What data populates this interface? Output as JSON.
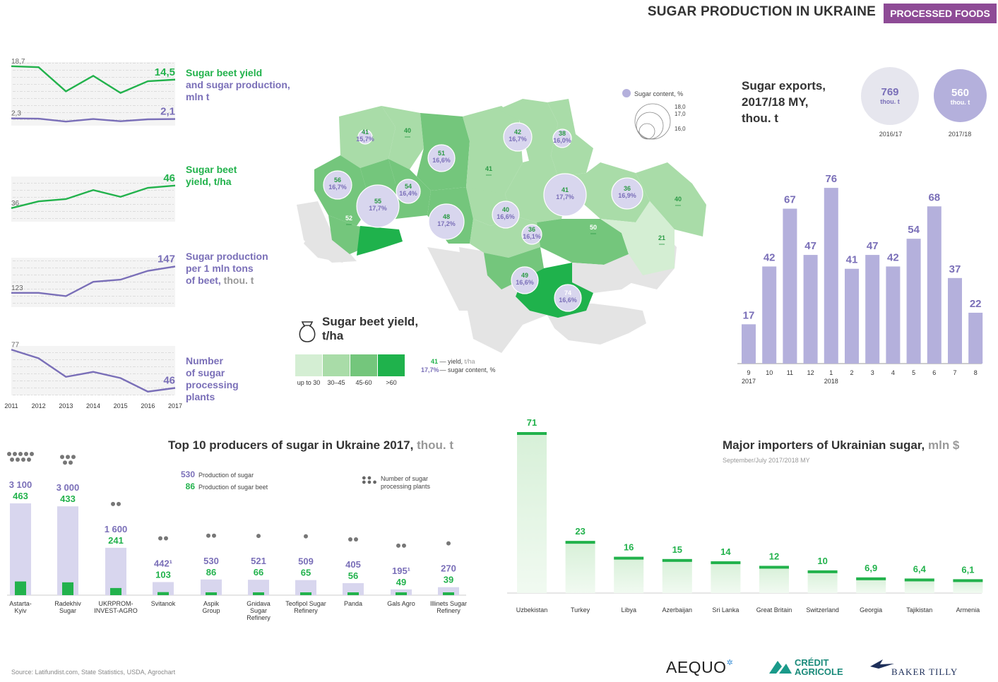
{
  "header": {
    "title": "SUGAR PRODUCTION IN UKRAINE",
    "badge": "PROCESSED FOODS"
  },
  "colors": {
    "green": "#22b24c",
    "purple": "#7a6fb8",
    "lavender": "#b4b0dc",
    "lavender_light": "#d8d6ee",
    "badge": "#8e4b96",
    "map_bg": "#e4e4e4"
  },
  "mini_charts": {
    "x": [
      "2011",
      "2012",
      "2013",
      "2014",
      "2015",
      "2016",
      "2017"
    ],
    "chart1": {
      "label_a": "Sugar beet yield",
      "label_b": "and sugar production,",
      "label_c": "mln t",
      "series": [
        {
          "name": "Sugar beet yield",
          "color": "#22b24c",
          "values": [
            18.7,
            18.4,
            10.8,
            15.7,
            10.3,
            14.0,
            14.5
          ],
          "first_label": "18,7",
          "last_label": "14,5"
        },
        {
          "name": "sugar production",
          "color": "#7a6fb8",
          "values": [
            2.3,
            2.2,
            1.3,
            2.1,
            1.4,
            2.0,
            2.1
          ],
          "first_label": "2,3",
          "last_label": "2,1"
        }
      ]
    },
    "chart2": {
      "label_a": "Sugar beet",
      "label_b": "yield,",
      "label_c": "t/ha",
      "series": [
        {
          "color": "#22b24c",
          "values": [
            36,
            39,
            40,
            44,
            41,
            45,
            46
          ],
          "first_label": "36",
          "last_label": "46"
        }
      ]
    },
    "chart3": {
      "label_a": "Sugar production",
      "label_b": "per 1 mln tons",
      "label_c": "of beet,",
      "label_d": "thou. t",
      "series": [
        {
          "color": "#7a6fb8",
          "values": [
            123,
            123,
            120,
            133,
            135,
            143,
            147
          ],
          "first_label": "123",
          "last_label": "147"
        }
      ]
    },
    "chart4": {
      "label_a": "Number",
      "label_b": "of sugar",
      "label_c": "processing",
      "label_d": "plants",
      "series": [
        {
          "color": "#7a6fb8",
          "values": [
            77,
            70,
            55,
            59,
            54,
            43,
            46
          ],
          "first_label": "77",
          "last_label": "46"
        }
      ]
    }
  },
  "map": {
    "legend_title": "Sugar content,",
    "legend_unit": "%",
    "legend_sizes": [
      "18,0",
      "17,0",
      "16,0"
    ],
    "regions": [
      {
        "yield": "41",
        "sugar": "15,7%",
        "fill": "#a9dca8"
      },
      {
        "yield": "40",
        "sugar": "",
        "fill": "#a9dca8"
      },
      {
        "yield": "51",
        "sugar": "16,6%",
        "fill": "#74c67c"
      },
      {
        "yield": "42",
        "sugar": "16,7%",
        "fill": "#a9dca8"
      },
      {
        "yield": "38",
        "sugar": "16,0%",
        "fill": "#a9dca8"
      },
      {
        "yield": "56",
        "sugar": "16,7%",
        "fill": "#74c67c"
      },
      {
        "yield": "55",
        "sugar": "17,7%",
        "fill": "#74c67c"
      },
      {
        "yield": "54",
        "sugar": "16,4%",
        "fill": "#74c67c"
      },
      {
        "yield": "41",
        "sugar": "",
        "fill": "#a9dca8"
      },
      {
        "yield": "41",
        "sugar": "17,7%",
        "fill": "#a9dca8"
      },
      {
        "yield": "36",
        "sugar": "16,9%",
        "fill": "#a9dca8"
      },
      {
        "yield": "40",
        "sugar": "",
        "fill": "#a9dca8"
      },
      {
        "yield": "52",
        "sugar": "",
        "fill": "#74c67c"
      },
      {
        "yield": "48",
        "sugar": "17,2%",
        "fill": "#74c67c"
      },
      {
        "yield": "40",
        "sugar": "16,6%",
        "fill": "#a9dca8"
      },
      {
        "yield": "36",
        "sugar": "16,1%",
        "fill": "#a9dca8"
      },
      {
        "yield": "50",
        "sugar": "",
        "fill": "#74c67c"
      },
      {
        "yield": "21",
        "sugar": "",
        "fill": "#d4eed3"
      },
      {
        "yield": "49",
        "sugar": "16,6%",
        "fill": "#74c67c"
      },
      {
        "yield": "74",
        "sugar": "16,6%",
        "fill": "#1fb24c"
      }
    ],
    "yield_title": "Sugar beet yield,",
    "yield_unit": "t/ha",
    "scale": [
      {
        "label": "up to 30",
        "fill": "#d4eed3"
      },
      {
        "label": "30–45",
        "fill": "#a9dca8"
      },
      {
        "label": "45-60",
        "fill": "#74c67c"
      },
      {
        "label": ">60",
        "fill": "#1fb24c"
      }
    ],
    "key_yield_value": "41",
    "key_yield_label": "— yield,",
    "key_yield_unit": "t/ha",
    "key_sugar_value": "17,7%",
    "key_sugar_label": "— sugar content, %"
  },
  "exports": {
    "title_a": "Sugar exports,",
    "title_b": "2017/18 MY,",
    "unit": "thou. t",
    "circles": [
      {
        "value": "769",
        "unit": "thou. t",
        "year": "2016/17"
      },
      {
        "value": "560",
        "unit": "thou. t",
        "year": "2017/18"
      }
    ]
  },
  "chart_data": [
    {
      "type": "bar",
      "title": "Sugar exports, 2017/18 MY, thou. t",
      "categories": [
        "9",
        "10",
        "11",
        "12",
        "1",
        "2",
        "3",
        "4",
        "5",
        "6",
        "7",
        "8"
      ],
      "year_labels": [
        "2017",
        "2018"
      ],
      "values": [
        17,
        42,
        67,
        47,
        76,
        41,
        47,
        42,
        54,
        68,
        37,
        22
      ],
      "value_labels": [
        "17",
        "42",
        "67",
        "47",
        "76",
        "41",
        "47",
        "42",
        "54",
        "68",
        "37",
        "22"
      ]
    },
    {
      "type": "bar",
      "title": "Top 10 producers of sugar in Ukraine 2017,",
      "unit": "thou. t",
      "legend": [
        {
          "sample": "530",
          "label": "Production of sugar"
        },
        {
          "sample": "86",
          "label": "Production of sugar beet"
        },
        {
          "label_a": "Number of sugar",
          "label_b": "processing plants"
        }
      ],
      "categories": [
        "Astarta-Kyiv",
        "Radekhiv Sugar",
        "UKRPROM-INVEST-AGRO",
        "Svitanok",
        "Aspik Group",
        "Gnidava Sugar Refinery",
        "Teofipol Sugar Refinery",
        "Panda",
        "Gals Agro",
        "Illinets Sugar Refinery"
      ],
      "category_lines": [
        [
          "Astarta-",
          "Kyiv"
        ],
        [
          "Radekhiv",
          "Sugar"
        ],
        [
          "UKRPROM-",
          "INVEST-AGRO"
        ],
        [
          "Svitanok"
        ],
        [
          "Aspik",
          "Group"
        ],
        [
          "Gnidava",
          "Sugar",
          "Refinery"
        ],
        [
          "Teofipol Sugar",
          "Refinery"
        ],
        [
          "Panda"
        ],
        [
          "Gals Agro"
        ],
        [
          "Illinets Sugar",
          "Refinery"
        ]
      ],
      "series": [
        {
          "name": "Production of sugar",
          "values": [
            3100,
            3000,
            1600,
            442,
            530,
            521,
            509,
            405,
            195,
            270
          ],
          "labels": [
            "3 100",
            "3 000",
            "1 600",
            "442¹",
            "530",
            "521",
            "509",
            "405",
            "195¹",
            "270"
          ]
        },
        {
          "name": "Production of sugar beet",
          "values": [
            463,
            433,
            241,
            103,
            86,
            66,
            65,
            56,
            49,
            39
          ],
          "labels": [
            "463",
            "433",
            "241",
            "103",
            "86",
            "66",
            "65",
            "56",
            "49",
            "39"
          ]
        }
      ],
      "plants": [
        9,
        5,
        2,
        2,
        2,
        1,
        1,
        2,
        2,
        1
      ]
    },
    {
      "type": "bar",
      "title": "Major importers of Ukrainian sugar,",
      "unit": "mln $",
      "subtitle": "September/July 2017/2018 MY",
      "categories": [
        "Uzbekistan",
        "Turkey",
        "Libya",
        "Azerbaijan",
        "Sri Lanka",
        "Great Britain",
        "Switzerland",
        "Georgia",
        "Tajikistan",
        "Armenia"
      ],
      "values": [
        71,
        23,
        16,
        15,
        14,
        12,
        10,
        6.9,
        6.4,
        6.1
      ],
      "value_labels": [
        "71",
        "23",
        "16",
        "15",
        "14",
        "12",
        "10",
        "6,9",
        "6,4",
        "6,1"
      ]
    }
  ],
  "footer": {
    "source": "Source: Latifundist.com, State Statistics, USDA, Agrochart",
    "logo_aequo": "AEQUO",
    "logo_ca_a": "CRÉDIT",
    "logo_ca_b": "AGRICOLE",
    "logo_bt": "BAKER TILLY"
  }
}
